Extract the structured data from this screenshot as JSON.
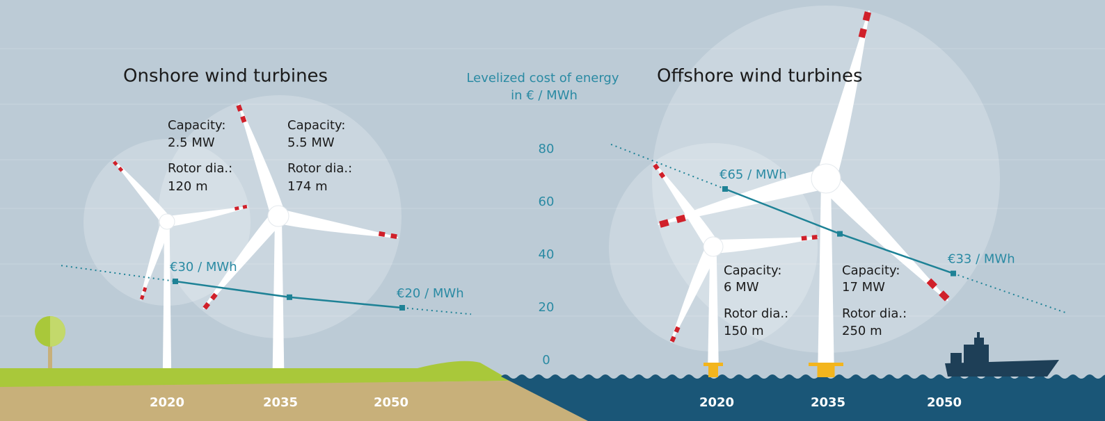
{
  "chart_data": {
    "type": "line",
    "ylabel": "Levelized cost of energy",
    "ylabel_unit": "in € / MWh",
    "ylim": [
      0,
      80
    ],
    "yticks": [
      0,
      20,
      40,
      60,
      80
    ],
    "color": "#1e8296",
    "panels": [
      {
        "title": "Onshore wind turbines",
        "categories": [
          "2020",
          "2035",
          "2050"
        ],
        "values": [
          30,
          24,
          20
        ],
        "value_labels": [
          "€30 / MWh",
          null,
          "€20 / MWh"
        ],
        "turbines": [
          {
            "capacity_label": "Capacity:",
            "capacity": "2.5 MW",
            "rotor_label": "Rotor dia.:",
            "rotor": "120 m"
          },
          {
            "capacity_label": "Capacity:",
            "capacity": "5.5 MW",
            "rotor_label": "Rotor dia.:",
            "rotor": "174 m"
          }
        ]
      },
      {
        "title": "Offshore wind turbines",
        "categories": [
          "2020",
          "2035",
          "2050"
        ],
        "values": [
          65,
          48,
          33
        ],
        "value_labels": [
          "€65 / MWh",
          null,
          "€33 / MWh"
        ],
        "turbines": [
          {
            "capacity_label": "Capacity:",
            "capacity": "6 MW",
            "rotor_label": "Rotor dia.:",
            "rotor": "150 m"
          },
          {
            "capacity_label": "Capacity:",
            "capacity": "17 MW",
            "rotor_label": "Rotor dia.:",
            "rotor": "250 m"
          }
        ]
      }
    ]
  }
}
